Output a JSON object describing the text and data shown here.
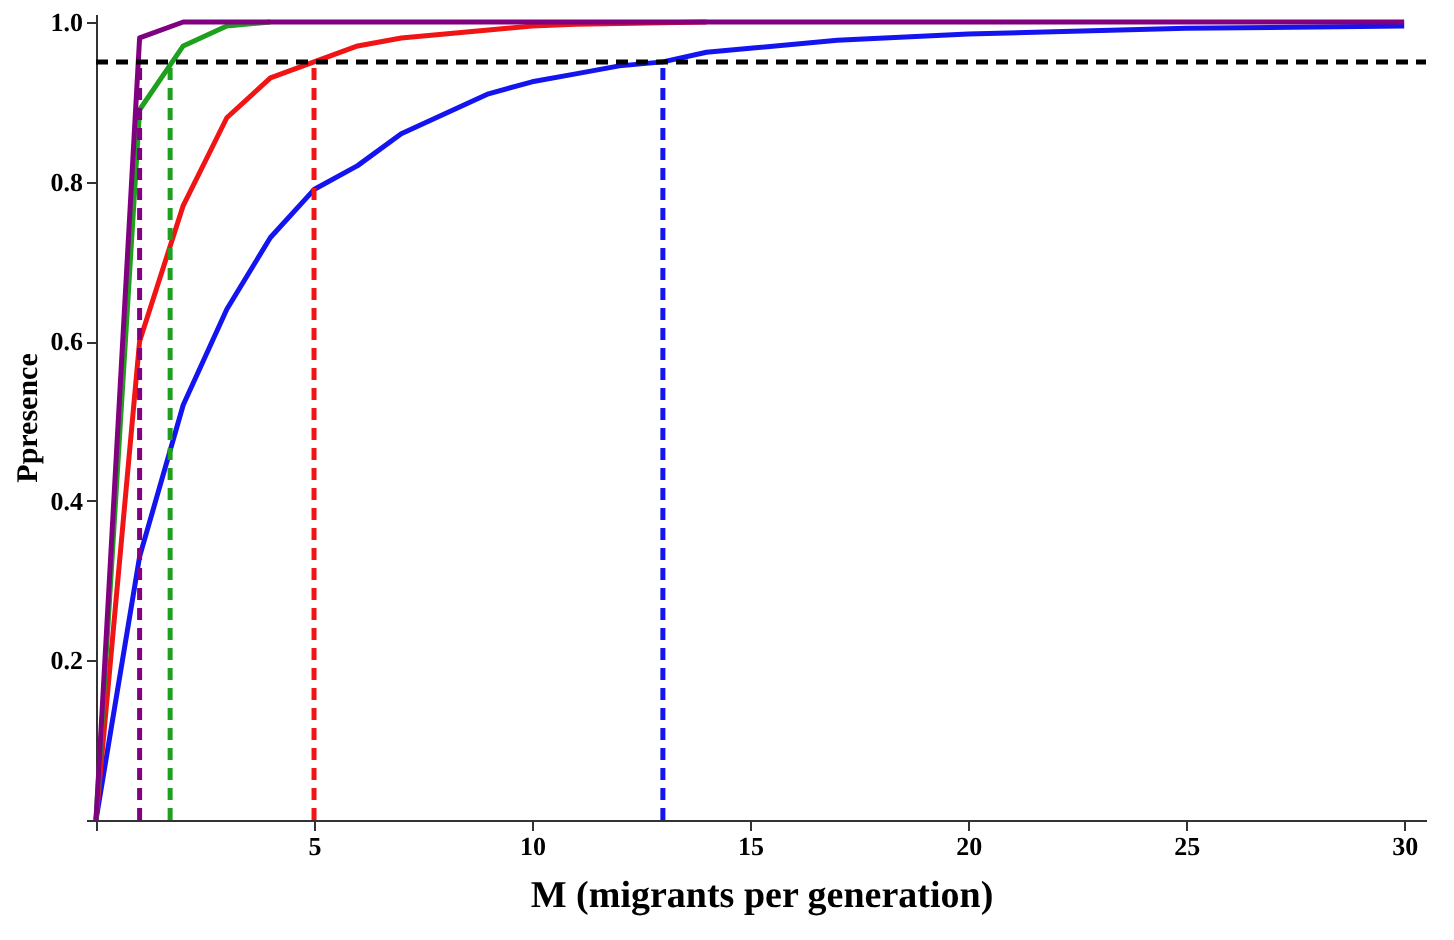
{
  "chart_data": {
    "type": "line",
    "xlabel": "M (migrants per generation)",
    "ylabel": "Ppresence",
    "x": [
      0,
      1,
      2,
      3,
      4,
      5,
      6,
      7,
      8,
      9,
      10,
      11,
      12,
      13,
      14,
      15,
      17,
      20,
      25,
      30
    ],
    "series": [
      {
        "color": "#1414f0",
        "values": [
          0,
          0.33,
          0.52,
          0.64,
          0.73,
          0.79,
          0.82,
          0.86,
          0.885,
          0.91,
          0.925,
          0.935,
          0.945,
          0.95,
          0.962,
          0.967,
          0.977,
          0.985,
          0.992,
          0.995
        ]
      },
      {
        "color": "#f01414",
        "values": [
          0,
          0.6,
          0.77,
          0.88,
          0.93,
          0.95,
          0.97,
          0.98,
          0.985,
          0.99,
          0.995,
          0.997,
          0.998,
          0.999,
          1,
          null,
          null,
          null,
          null,
          null
        ]
      },
      {
        "color": "#1ea01e",
        "values": [
          0,
          0.89,
          0.97,
          0.995,
          1,
          null,
          null,
          null,
          null,
          null,
          null,
          null,
          null,
          null,
          null,
          null,
          null,
          null,
          null,
          null
        ]
      },
      {
        "color": "#800080",
        "values": [
          0,
          0.98,
          1,
          1,
          1,
          1,
          1,
          1,
          1,
          1,
          1,
          1,
          1,
          1,
          1,
          1,
          1,
          1,
          1,
          1
        ]
      }
    ],
    "xlim": [
      0,
      30.5
    ],
    "ylim": [
      0,
      1.01
    ],
    "xticks": [
      {
        "value": 0,
        "label": null
      },
      5,
      10,
      15,
      20,
      25,
      30
    ],
    "yticks": [
      {
        "value": 0,
        "label": null
      },
      0.2,
      0.4,
      0.6,
      0.8,
      {
        "value": 1,
        "label": "1.0"
      }
    ],
    "ref_lines": [
      {
        "axis": "y",
        "value": 0.95,
        "color": "#000000",
        "line_style": "dashed"
      },
      {
        "axis": "x",
        "value": 1,
        "color": "#800080",
        "line_style": "dashed"
      },
      {
        "axis": "x",
        "value": 1.7,
        "color": "#1ea01e",
        "line_style": "dashed"
      },
      {
        "axis": "x",
        "value": 5,
        "color": "#f01414",
        "line_style": "dashed"
      },
      {
        "axis": "x",
        "value": 13,
        "color": "#1414f0",
        "line_style": "dashed"
      }
    ],
    "grid": false,
    "marker": "none",
    "line_style": "solid"
  }
}
